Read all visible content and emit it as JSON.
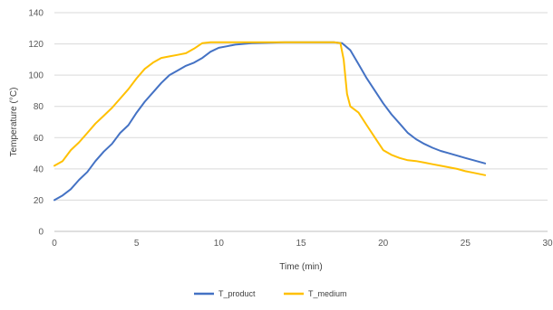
{
  "chart_data": {
    "type": "line",
    "title": "",
    "xlabel": "Time (min)",
    "ylabel": "Temperature (°C)",
    "xlim": [
      0,
      30
    ],
    "ylim": [
      0,
      140
    ],
    "xticks": [
      0,
      5,
      10,
      15,
      20,
      25,
      30
    ],
    "yticks": [
      0,
      20,
      40,
      60,
      80,
      100,
      120,
      140
    ],
    "grid": "horizontal",
    "legend_position": "bottom",
    "series": [
      {
        "name": "T_product",
        "color": "#4472C4",
        "points": [
          [
            0,
            20
          ],
          [
            0.5,
            23
          ],
          [
            1,
            27
          ],
          [
            1.5,
            33
          ],
          [
            2,
            38
          ],
          [
            2.5,
            45
          ],
          [
            3,
            51
          ],
          [
            3.5,
            56
          ],
          [
            4,
            63
          ],
          [
            4.5,
            68
          ],
          [
            5,
            76
          ],
          [
            5.5,
            83
          ],
          [
            6,
            89
          ],
          [
            6.5,
            95
          ],
          [
            7,
            100
          ],
          [
            7.5,
            103
          ],
          [
            8,
            106
          ],
          [
            8.5,
            108
          ],
          [
            9,
            111
          ],
          [
            9.5,
            115
          ],
          [
            10,
            117.5
          ],
          [
            10.5,
            118.5
          ],
          [
            11,
            119.5
          ],
          [
            12,
            120.5
          ],
          [
            13,
            120.8
          ],
          [
            14,
            121
          ],
          [
            15,
            121
          ],
          [
            16,
            121
          ],
          [
            17,
            121
          ],
          [
            17.5,
            120.5
          ],
          [
            18,
            116
          ],
          [
            18.5,
            107
          ],
          [
            19,
            98
          ],
          [
            19.5,
            90
          ],
          [
            20,
            82
          ],
          [
            20.5,
            75
          ],
          [
            21,
            69
          ],
          [
            21.5,
            63
          ],
          [
            22,
            59
          ],
          [
            22.5,
            56
          ],
          [
            23,
            53.5
          ],
          [
            23.5,
            51.5
          ],
          [
            24,
            50
          ],
          [
            24.5,
            48.5
          ],
          [
            25,
            47
          ],
          [
            25.5,
            45.5
          ],
          [
            26.2,
            43.5
          ]
        ]
      },
      {
        "name": "T_medium",
        "color": "#FFC000",
        "points": [
          [
            0,
            42
          ],
          [
            0.5,
            45
          ],
          [
            1,
            52
          ],
          [
            1.5,
            57
          ],
          [
            2,
            63
          ],
          [
            2.5,
            69
          ],
          [
            3,
            74
          ],
          [
            3.5,
            79
          ],
          [
            4,
            85
          ],
          [
            4.5,
            91
          ],
          [
            5,
            98
          ],
          [
            5.5,
            104
          ],
          [
            6,
            108
          ],
          [
            6.5,
            111
          ],
          [
            7,
            112
          ],
          [
            7.5,
            113
          ],
          [
            8,
            114
          ],
          [
            8.5,
            117
          ],
          [
            9,
            120.5
          ],
          [
            9.5,
            121
          ],
          [
            10,
            121
          ],
          [
            12,
            121
          ],
          [
            14,
            121
          ],
          [
            16,
            121
          ],
          [
            17,
            121
          ],
          [
            17.4,
            120.5
          ],
          [
            17.6,
            110
          ],
          [
            17.8,
            88
          ],
          [
            18,
            80
          ],
          [
            18.5,
            76
          ],
          [
            19,
            68
          ],
          [
            19.5,
            60
          ],
          [
            20,
            52
          ],
          [
            20.5,
            49
          ],
          [
            21,
            47
          ],
          [
            21.5,
            45.5
          ],
          [
            22,
            45
          ],
          [
            22.5,
            44
          ],
          [
            23,
            43
          ],
          [
            23.5,
            42
          ],
          [
            24,
            41
          ],
          [
            24.5,
            40
          ],
          [
            25,
            38.5
          ],
          [
            25.5,
            37.5
          ],
          [
            26.2,
            36
          ]
        ]
      }
    ]
  }
}
